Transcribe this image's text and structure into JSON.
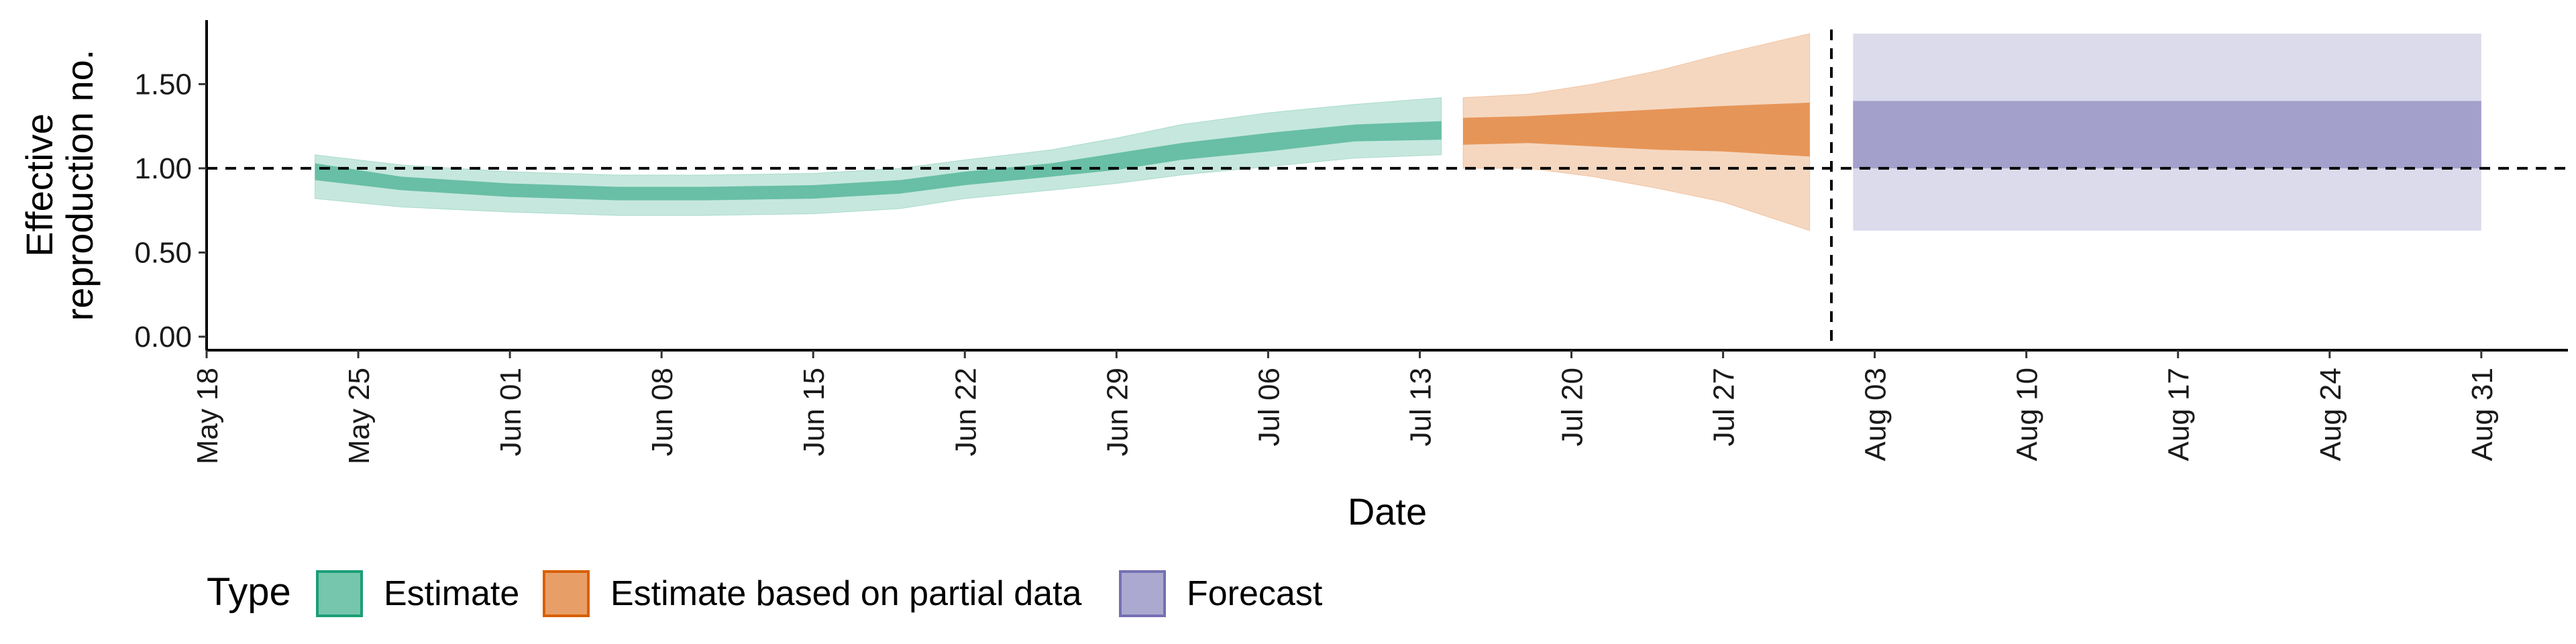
{
  "chart_data": {
    "type": "area",
    "xlabel": "Date",
    "ylabel_lines": [
      "Effective",
      "reproduction no."
    ],
    "y_ticks": [
      {
        "value": 0.0,
        "label": "0.00"
      },
      {
        "value": 0.5,
        "label": "0.50"
      },
      {
        "value": 1.0,
        "label": "1.00"
      },
      {
        "value": 1.5,
        "label": "1.50"
      }
    ],
    "ylim": [
      -0.08,
      1.88
    ],
    "xlim": [
      "2020-05-18",
      "2020-09-04"
    ],
    "x_ticks": [
      {
        "date": "2020-05-18",
        "label": "May 18"
      },
      {
        "date": "2020-05-25",
        "label": "May 25"
      },
      {
        "date": "2020-06-01",
        "label": "Jun 01"
      },
      {
        "date": "2020-06-08",
        "label": "Jun 08"
      },
      {
        "date": "2020-06-15",
        "label": "Jun 15"
      },
      {
        "date": "2020-06-22",
        "label": "Jun 22"
      },
      {
        "date": "2020-06-29",
        "label": "Jun 29"
      },
      {
        "date": "2020-07-06",
        "label": "Jul 06"
      },
      {
        "date": "2020-07-13",
        "label": "Jul 13"
      },
      {
        "date": "2020-07-20",
        "label": "Jul 20"
      },
      {
        "date": "2020-07-27",
        "label": "Jul 27"
      },
      {
        "date": "2020-08-03",
        "label": "Aug 03"
      },
      {
        "date": "2020-08-10",
        "label": "Aug 10"
      },
      {
        "date": "2020-08-17",
        "label": "Aug 17"
      },
      {
        "date": "2020-08-24",
        "label": "Aug 24"
      },
      {
        "date": "2020-08-31",
        "label": "Aug 31"
      }
    ],
    "reference_line_y": 1.0,
    "forecast_start_date": "2020-08-01",
    "series": [
      {
        "name": "Estimate",
        "color": "#1B9E77",
        "points": [
          {
            "date": "2020-05-23",
            "median": 0.98,
            "inner": [
              0.93,
              1.03
            ],
            "outer": [
              0.82,
              1.08
            ]
          },
          {
            "date": "2020-05-27",
            "median": 0.91,
            "inner": [
              0.87,
              0.95
            ],
            "outer": [
              0.77,
              1.02
            ]
          },
          {
            "date": "2020-06-01",
            "median": 0.87,
            "inner": [
              0.83,
              0.91
            ],
            "outer": [
              0.74,
              0.98
            ]
          },
          {
            "date": "2020-06-06",
            "median": 0.85,
            "inner": [
              0.81,
              0.89
            ],
            "outer": [
              0.72,
              0.96
            ]
          },
          {
            "date": "2020-06-10",
            "median": 0.85,
            "inner": [
              0.81,
              0.89
            ],
            "outer": [
              0.72,
              0.96
            ]
          },
          {
            "date": "2020-06-15",
            "median": 0.86,
            "inner": [
              0.82,
              0.9
            ],
            "outer": [
              0.73,
              0.97
            ]
          },
          {
            "date": "2020-06-19",
            "median": 0.89,
            "inner": [
              0.85,
              0.93
            ],
            "outer": [
              0.76,
              1.0
            ]
          },
          {
            "date": "2020-06-22",
            "median": 0.94,
            "inner": [
              0.9,
              0.98
            ],
            "outer": [
              0.82,
              1.05
            ]
          },
          {
            "date": "2020-06-26",
            "median": 0.99,
            "inner": [
              0.95,
              1.03
            ],
            "outer": [
              0.87,
              1.11
            ]
          },
          {
            "date": "2020-06-29",
            "median": 1.04,
            "inner": [
              0.99,
              1.09
            ],
            "outer": [
              0.91,
              1.18
            ]
          },
          {
            "date": "2020-07-02",
            "median": 1.1,
            "inner": [
              1.05,
              1.15
            ],
            "outer": [
              0.96,
              1.26
            ]
          },
          {
            "date": "2020-07-06",
            "median": 1.16,
            "inner": [
              1.1,
              1.21
            ],
            "outer": [
              1.01,
              1.33
            ]
          },
          {
            "date": "2020-07-10",
            "median": 1.21,
            "inner": [
              1.16,
              1.26
            ],
            "outer": [
              1.06,
              1.38
            ]
          },
          {
            "date": "2020-07-14",
            "median": 1.23,
            "inner": [
              1.17,
              1.28
            ],
            "outer": [
              1.08,
              1.42
            ]
          }
        ]
      },
      {
        "name": "Estimate based on partial data",
        "color": "#D95F02",
        "points": [
          {
            "date": "2020-07-15",
            "median": 1.22,
            "inner": [
              1.14,
              1.3
            ],
            "outer": [
              1.0,
              1.42
            ]
          },
          {
            "date": "2020-07-18",
            "median": 1.23,
            "inner": [
              1.15,
              1.31
            ],
            "outer": [
              1.0,
              1.44
            ]
          },
          {
            "date": "2020-07-21",
            "median": 1.24,
            "inner": [
              1.13,
              1.33
            ],
            "outer": [
              0.95,
              1.5
            ]
          },
          {
            "date": "2020-07-24",
            "median": 1.24,
            "inner": [
              1.11,
              1.35
            ],
            "outer": [
              0.88,
              1.58
            ]
          },
          {
            "date": "2020-07-27",
            "median": 1.25,
            "inner": [
              1.1,
              1.37
            ],
            "outer": [
              0.8,
              1.68
            ]
          },
          {
            "date": "2020-07-31",
            "median": 1.25,
            "inner": [
              1.07,
              1.39
            ],
            "outer": [
              0.63,
              1.8
            ]
          }
        ]
      },
      {
        "name": "Forecast",
        "color": "#7570B3",
        "points": [
          {
            "date": "2020-08-02",
            "median": 1.2,
            "inner": [
              1.0,
              1.4
            ],
            "outer": [
              0.63,
              1.8
            ]
          },
          {
            "date": "2020-08-31",
            "median": 1.2,
            "inner": [
              1.0,
              1.4
            ],
            "outer": [
              0.63,
              1.8
            ]
          }
        ]
      }
    ],
    "legend": {
      "title": "Type",
      "position": "bottom-left",
      "items": [
        {
          "label": "Estimate",
          "color": "#1B9E77"
        },
        {
          "label": "Estimate based on partial data",
          "color": "#D95F02"
        },
        {
          "label": "Forecast",
          "color": "#7570B3"
        }
      ]
    }
  }
}
